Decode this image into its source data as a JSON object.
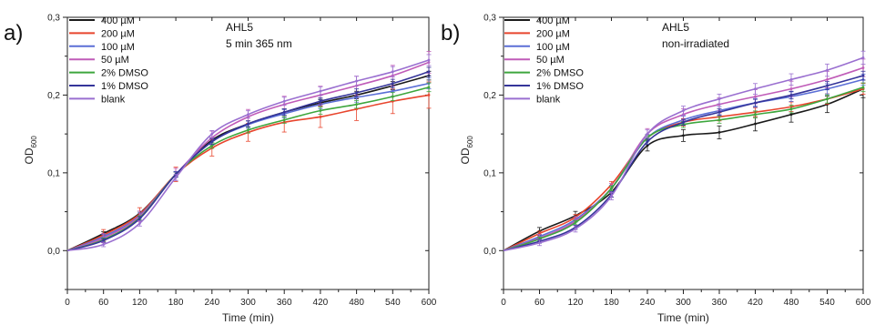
{
  "chart_data": [
    {
      "type": "line",
      "panel_label": "a)",
      "annotation": [
        "AHL5",
        "5 min 365 nm"
      ],
      "xlabel": "Time (min)",
      "ylabel": "OD",
      "ylabel_sub": "600",
      "xlim": [
        0,
        600
      ],
      "ylim": [
        -0.05,
        0.3
      ],
      "xticks": [
        "0",
        "60",
        "120",
        "180",
        "240",
        "300",
        "360",
        "420",
        "480",
        "540",
        "600"
      ],
      "yticks": [
        "0,0",
        "0,1",
        "0,2",
        "0,3"
      ],
      "legend_position": "top-left",
      "x": [
        0,
        60,
        120,
        180,
        240,
        300,
        360,
        420,
        480,
        540,
        600
      ],
      "series": [
        {
          "name": "400 µM",
          "color": "#1a1a1a",
          "values": [
            0.0,
            0.022,
            0.048,
            0.098,
            0.142,
            0.163,
            0.178,
            0.19,
            0.2,
            0.212,
            0.225
          ],
          "error": 0.004
        },
        {
          "name": "200 µM",
          "color": "#e8452d",
          "values": [
            0.0,
            0.02,
            0.047,
            0.098,
            0.132,
            0.152,
            0.165,
            0.172,
            0.182,
            0.192,
            0.2
          ],
          "error": 0.012
        },
        {
          "name": "100 µM",
          "color": "#5b6fd6",
          "values": [
            0.0,
            0.018,
            0.045,
            0.098,
            0.14,
            0.162,
            0.176,
            0.188,
            0.197,
            0.205,
            0.215
          ],
          "error": 0.005
        },
        {
          "name": "50 µM",
          "color": "#c05cb8",
          "values": [
            0.0,
            0.016,
            0.044,
            0.098,
            0.145,
            0.172,
            0.188,
            0.2,
            0.212,
            0.225,
            0.242
          ],
          "error": 0.01
        },
        {
          "name": "2% DMSO",
          "color": "#3da63d",
          "values": [
            0.0,
            0.014,
            0.042,
            0.098,
            0.135,
            0.155,
            0.168,
            0.18,
            0.188,
            0.198,
            0.21
          ],
          "error": 0.004
        },
        {
          "name": "1% DMSO",
          "color": "#35359a",
          "values": [
            0.0,
            0.013,
            0.041,
            0.098,
            0.14,
            0.163,
            0.178,
            0.192,
            0.203,
            0.215,
            0.23
          ],
          "error": 0.004
        },
        {
          "name": "blank",
          "color": "#9a6fd0",
          "values": [
            0.0,
            0.008,
            0.035,
            0.094,
            0.15,
            0.175,
            0.192,
            0.205,
            0.218,
            0.23,
            0.245
          ],
          "error": 0.005
        }
      ]
    },
    {
      "type": "line",
      "panel_label": "b)",
      "annotation": [
        "AHL5",
        "non-irradiated"
      ],
      "xlabel": "Time (min)",
      "ylabel": "OD",
      "ylabel_sub": "600",
      "xlim": [
        0,
        600
      ],
      "ylim": [
        -0.05,
        0.3
      ],
      "xticks": [
        "0",
        "60",
        "120",
        "180",
        "240",
        "300",
        "360",
        "420",
        "480",
        "540",
        "600"
      ],
      "yticks": [
        "0,0",
        "0,1",
        "0,2",
        "0,3"
      ],
      "legend_position": "top-left",
      "x": [
        0,
        60,
        120,
        180,
        240,
        300,
        360,
        420,
        480,
        540,
        600
      ],
      "series": [
        {
          "name": "400 µM",
          "color": "#1a1a1a",
          "values": [
            0.0,
            0.025,
            0.045,
            0.075,
            0.135,
            0.148,
            0.152,
            0.163,
            0.175,
            0.188,
            0.208
          ],
          "error": 0.008
        },
        {
          "name": "200 µM",
          "color": "#e8452d",
          "values": [
            0.0,
            0.022,
            0.043,
            0.085,
            0.145,
            0.165,
            0.172,
            0.178,
            0.185,
            0.195,
            0.208
          ],
          "error": 0.005
        },
        {
          "name": "100 µM",
          "color": "#5b6fd6",
          "values": [
            0.0,
            0.018,
            0.04,
            0.08,
            0.145,
            0.168,
            0.18,
            0.19,
            0.198,
            0.208,
            0.22
          ],
          "error": 0.005
        },
        {
          "name": "50 µM",
          "color": "#c05cb8",
          "values": [
            0.0,
            0.016,
            0.038,
            0.08,
            0.15,
            0.175,
            0.188,
            0.198,
            0.208,
            0.22,
            0.235
          ],
          "error": 0.008
        },
        {
          "name": "2% DMSO",
          "color": "#3da63d",
          "values": [
            0.0,
            0.015,
            0.036,
            0.08,
            0.145,
            0.162,
            0.168,
            0.175,
            0.182,
            0.195,
            0.21
          ],
          "error": 0.004
        },
        {
          "name": "1% DMSO",
          "color": "#35359a",
          "values": [
            0.0,
            0.012,
            0.03,
            0.072,
            0.14,
            0.165,
            0.178,
            0.19,
            0.2,
            0.212,
            0.225
          ],
          "error": 0.004
        },
        {
          "name": "blank",
          "color": "#9a6fd0",
          "values": [
            0.0,
            0.01,
            0.028,
            0.07,
            0.15,
            0.18,
            0.195,
            0.208,
            0.22,
            0.232,
            0.248
          ],
          "error": 0.006
        }
      ]
    }
  ]
}
